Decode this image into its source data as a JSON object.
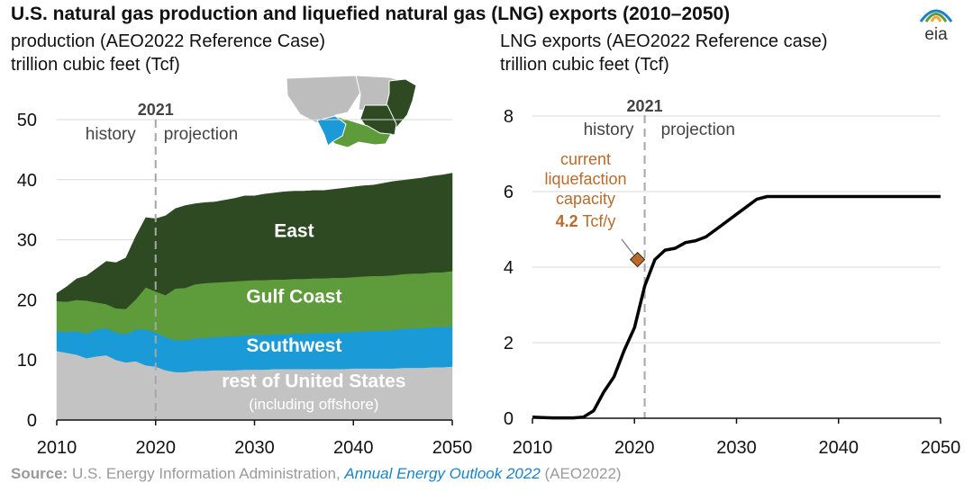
{
  "title": "U.S. natural gas production and liquefied natural gas (LNG) exports (2010–2050)",
  "logo_text": "eia",
  "left_subtitle_1": "production (AEO2022 Reference Case)",
  "left_subtitle_2": "trillion cubic feet (Tcf)",
  "right_subtitle_1": "LNG exports (AEO2022 Reference case)",
  "right_subtitle_2": "trillion cubic feet (Tcf)",
  "source": {
    "label": "Source:",
    "text": "U.S. Energy Information Administration,",
    "link": "Annual Energy Outlook 2022",
    "suffix": "(AEO2022)"
  },
  "colors": {
    "east": "#2d4a22",
    "gulf_coast": "#5e9b3a",
    "southwest": "#1a9bd7",
    "rest": "#c3c3c3",
    "line": "#000000",
    "marker": "#b86b2c",
    "divider": "#a6a6a6"
  },
  "chart_data": [
    {
      "type": "area",
      "stacked": true,
      "x": [
        2010,
        2011,
        2012,
        2013,
        2014,
        2015,
        2016,
        2017,
        2018,
        2019,
        2020,
        2021,
        2022,
        2023,
        2024,
        2025,
        2026,
        2027,
        2028,
        2029,
        2030,
        2031,
        2032,
        2033,
        2034,
        2035,
        2036,
        2037,
        2038,
        2039,
        2040,
        2041,
        2042,
        2043,
        2044,
        2045,
        2046,
        2047,
        2048,
        2049,
        2050
      ],
      "series": [
        {
          "name": "rest of United States",
          "sublabel": "(including offshore)",
          "values": [
            11.5,
            11.2,
            10.9,
            10.3,
            10.6,
            10.8,
            10.0,
            9.6,
            9.8,
            9.1,
            8.9,
            8.3,
            8.0,
            8.0,
            8.2,
            8.2,
            8.3,
            8.3,
            8.3,
            8.4,
            8.4,
            8.4,
            8.5,
            8.5,
            8.5,
            8.5,
            8.5,
            8.5,
            8.5,
            8.5,
            8.6,
            8.6,
            8.6,
            8.6,
            8.6,
            8.7,
            8.7,
            8.7,
            8.8,
            8.8,
            8.9
          ]
        },
        {
          "name": "Southwest",
          "values": [
            3.3,
            3.5,
            3.9,
            4.1,
            4.5,
            4.5,
            4.6,
            4.7,
            5.3,
            6.0,
            5.7,
            5.5,
            5.3,
            5.3,
            5.4,
            5.5,
            5.5,
            5.6,
            5.7,
            5.7,
            5.8,
            5.8,
            5.8,
            5.8,
            5.9,
            5.9,
            6.0,
            6.0,
            6.1,
            6.1,
            6.1,
            6.2,
            6.3,
            6.3,
            6.4,
            6.5,
            6.6,
            6.6,
            6.7,
            6.7,
            6.7
          ]
        },
        {
          "name": "Gulf Coast",
          "values": [
            5.0,
            5.0,
            5.2,
            5.5,
            4.5,
            4.0,
            4.0,
            4.2,
            5.0,
            7.0,
            6.8,
            7.0,
            8.6,
            8.7,
            9.0,
            9.1,
            9.1,
            9.1,
            9.1,
            9.1,
            9.1,
            9.1,
            9.1,
            9.1,
            9.1,
            9.1,
            9.1,
            9.1,
            9.1,
            9.1,
            9.1,
            9.1,
            9.1,
            9.1,
            9.1,
            9.1,
            9.1,
            9.1,
            9.1,
            9.1,
            9.2
          ]
        },
        {
          "name": "East",
          "values": [
            1.3,
            2.5,
            3.5,
            4.1,
            5.6,
            7.1,
            7.6,
            8.5,
            10.5,
            11.6,
            12.1,
            13.2,
            13.3,
            13.7,
            13.4,
            13.4,
            13.4,
            13.6,
            13.8,
            14.1,
            14.0,
            14.3,
            14.4,
            14.6,
            14.6,
            14.6,
            14.6,
            14.6,
            14.7,
            14.9,
            15.0,
            15.1,
            15.1,
            15.4,
            15.6,
            15.6,
            15.7,
            15.9,
            16.0,
            16.2,
            16.3
          ]
        }
      ],
      "xlim": [
        2010,
        2050
      ],
      "ylim": [
        0,
        50
      ],
      "yticks": [
        0,
        10,
        20,
        30,
        40,
        50
      ],
      "xticks": [
        2010,
        2020,
        2030,
        2040,
        2050
      ],
      "divider_year": 2020,
      "divider_label": "2021",
      "history_label": "history",
      "projection_label": "projection",
      "grid": "horizontal"
    },
    {
      "type": "line",
      "x": [
        2010,
        2011,
        2012,
        2013,
        2014,
        2015,
        2016,
        2017,
        2018,
        2019,
        2020,
        2021,
        2022,
        2023,
        2024,
        2025,
        2026,
        2027,
        2028,
        2029,
        2030,
        2031,
        2032,
        2033,
        2034,
        2035,
        2036,
        2037,
        2038,
        2039,
        2040,
        2041,
        2042,
        2043,
        2044,
        2045,
        2046,
        2047,
        2048,
        2049,
        2050
      ],
      "series": [
        {
          "name": "",
          "values": [
            0.03,
            0.02,
            0.01,
            0.01,
            0.01,
            0.03,
            0.2,
            0.7,
            1.1,
            1.8,
            2.4,
            3.5,
            4.2,
            4.45,
            4.5,
            4.65,
            4.7,
            4.8,
            5.0,
            5.2,
            5.4,
            5.6,
            5.8,
            5.87,
            5.87,
            5.87,
            5.87,
            5.87,
            5.87,
            5.87,
            5.87,
            5.87,
            5.87,
            5.87,
            5.87,
            5.87,
            5.87,
            5.87,
            5.87,
            5.87,
            5.87
          ]
        }
      ],
      "xlim": [
        2010,
        2050
      ],
      "ylim": [
        0,
        8
      ],
      "yticks": [
        0,
        2,
        4,
        6,
        8
      ],
      "xticks": [
        2010,
        2020,
        2030,
        2040,
        2050
      ],
      "divider_year": 2021,
      "divider_label": "2021",
      "history_label": "history",
      "projection_label": "projection",
      "grid": "horizontal",
      "annotation": {
        "lines": [
          "current",
          "liquefaction",
          "capacity"
        ],
        "value": "4.2",
        "unit": "Tcf/y",
        "x": 2020.3,
        "y": 4.2
      }
    }
  ]
}
